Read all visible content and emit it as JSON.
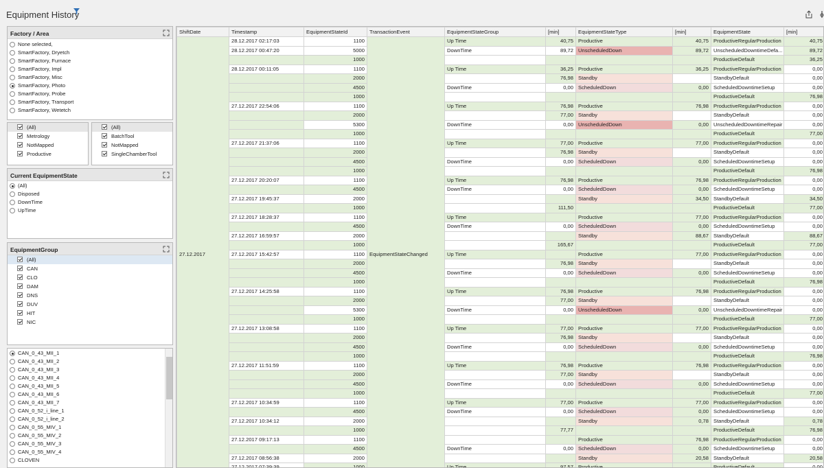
{
  "page": {
    "title": "Equipment History"
  },
  "factory_panel": {
    "title": "Factory / Area",
    "items": [
      "None selected,",
      "SmartFactory, Dryetch",
      "SmartFactory, Furnace",
      "SmartFactory, Impl",
      "SmartFactory, Misc",
      "SmartFactory, Photo",
      "SmartFactory, Probe",
      "SmartFactory, Transport",
      "SmartFactory, Wetetch"
    ],
    "selected": 5
  },
  "filter_left": {
    "items": [
      "(All)",
      "Metrology",
      "NotMapped",
      "Productive"
    ]
  },
  "filter_right": {
    "items": [
      "(All)",
      "BatchTool",
      "NotMapped",
      "SingleChamberTool"
    ]
  },
  "state_panel": {
    "title": "Current EquipmentState",
    "items": [
      "(All)",
      "Disposed",
      "DownTime",
      "UpTime"
    ],
    "selected": 0
  },
  "group_panel": {
    "title": "EquipmentGroup",
    "items": [
      "(All)",
      "CAN",
      "CLO",
      "DAM",
      "DNS",
      "DUV",
      "HIT",
      "NIC"
    ]
  },
  "equipment_list": {
    "items": [
      "CAN_0_43_MII_1",
      "CAN_0_43_MII_2",
      "CAN_0_43_MII_3",
      "CAN_0_43_MII_4",
      "CAN_0_43_MII_5",
      "CAN_0_43_MII_6",
      "CAN_0_43_MII_7",
      "CAN_0_52_i_line_1",
      "CAN_0_52_i_line_2",
      "CAN_0_55_MIV_1",
      "CAN_0_55_MIV_2",
      "CAN_0_55_MIV_3",
      "CAN_0_55_MIV_4",
      "CLOVEN"
    ],
    "selected": 0
  },
  "grid": {
    "columns": [
      "ShiftDate",
      "Timestamp",
      "EquipmentStateId",
      "TransactionEvent",
      "EquipmentStateGroup",
      "[min]",
      "EquipmentStateType",
      "[min]",
      "EquipmentState",
      "[min]"
    ],
    "shift_date": "27.12.2017",
    "transaction_event": "EquipmentStateChanged",
    "rows": [
      [
        "28.12.2017 02:17:03",
        "1100",
        "Up Time",
        "40,75",
        "Productive",
        "40,75",
        "ProductiveRegularProduction",
        "40,75"
      ],
      [
        "28.12.2017 00:47:20",
        "5000",
        "DownTime",
        "89,72",
        "UnscheduledDown",
        "89,72",
        "UnscheduledDowntimeDefa...",
        "89,72"
      ],
      [
        "",
        "1000",
        "",
        "",
        "",
        "",
        "ProductiveDefault",
        "36,25"
      ],
      [
        "28.12.2017 00:11:05",
        "1100",
        "Up Time",
        "36,25",
        "Productive",
        "36,25",
        "ProductiveRegularProduction",
        "0,00"
      ],
      [
        "",
        "2000",
        "",
        "76,98",
        "Standby",
        "",
        "StandbyDefault",
        "0,00"
      ],
      [
        "",
        "4500",
        "DownTime",
        "0,00",
        "ScheduledDown",
        "0,00",
        "ScheduledDowntimeSetup",
        "0,00"
      ],
      [
        "",
        "1000",
        "",
        "",
        "",
        "",
        "ProductiveDefault",
        "76,98"
      ],
      [
        "27.12.2017 22:54:06",
        "1100",
        "Up Time",
        "76,98",
        "Productive",
        "76,98",
        "ProductiveRegularProduction",
        "0,00"
      ],
      [
        "",
        "2000",
        "",
        "77,00",
        "Standby",
        "",
        "StandbyDefault",
        "0,00"
      ],
      [
        "",
        "5300",
        "DownTime",
        "0,00",
        "UnscheduledDown",
        "0,00",
        "UnscheduledDowntimeRepair",
        "0,00"
      ],
      [
        "",
        "1000",
        "",
        "",
        "",
        "",
        "ProductiveDefault",
        "77,00"
      ],
      [
        "27.12.2017 21:37:06",
        "1100",
        "Up Time",
        "77,00",
        "Productive",
        "77,00",
        "ProductiveRegularProduction",
        "0,00"
      ],
      [
        "",
        "2000",
        "",
        "76,98",
        "Standby",
        "",
        "StandbyDefault",
        "0,00"
      ],
      [
        "",
        "4500",
        "DownTime",
        "0,00",
        "ScheduledDown",
        "0,00",
        "ScheduledDowntimeSetup",
        "0,00"
      ],
      [
        "",
        "1000",
        "",
        "",
        "",
        "",
        "ProductiveDefault",
        "76,98"
      ],
      [
        "27.12.2017 20:20:07",
        "1100",
        "Up Time",
        "76,98",
        "Productive",
        "76,98",
        "ProductiveRegularProduction",
        "0,00"
      ],
      [
        "",
        "4500",
        "DownTime",
        "0,00",
        "ScheduledDown",
        "0,00",
        "ScheduledDowntimeSetup",
        "0,00"
      ],
      [
        "27.12.2017 19:45:37",
        "2000",
        "",
        "",
        "Standby",
        "34,50",
        "StandbyDefault",
        "34,50"
      ],
      [
        "",
        "1000",
        "",
        "111,50",
        "",
        "",
        "ProductiveDefault",
        "77,00"
      ],
      [
        "27.12.2017 18:28:37",
        "1100",
        "Up Time",
        "",
        "Productive",
        "77,00",
        "ProductiveRegularProduction",
        "0,00"
      ],
      [
        "",
        "4500",
        "DownTime",
        "0,00",
        "ScheduledDown",
        "0,00",
        "ScheduledDowntimeSetup",
        "0,00"
      ],
      [
        "27.12.2017 16:59:57",
        "2000",
        "",
        "",
        "Standby",
        "88,67",
        "StandbyDefault",
        "88,67"
      ],
      [
        "",
        "1000",
        "",
        "165,67",
        "",
        "",
        "ProductiveDefault",
        "77,00"
      ],
      [
        "27.12.2017 15:42:57",
        "1100",
        "Up Time",
        "",
        "Productive",
        "77,00",
        "ProductiveRegularProduction",
        "0,00"
      ],
      [
        "",
        "2000",
        "",
        "76,98",
        "Standby",
        "",
        "StandbyDefault",
        "0,00"
      ],
      [
        "",
        "4500",
        "DownTime",
        "0,00",
        "ScheduledDown",
        "0,00",
        "ScheduledDowntimeSetup",
        "0,00"
      ],
      [
        "",
        "1000",
        "",
        "",
        "",
        "",
        "ProductiveDefault",
        "76,98"
      ],
      [
        "27.12.2017 14:25:58",
        "1100",
        "Up Time",
        "76,98",
        "Productive",
        "76,98",
        "ProductiveRegularProduction",
        "0,00"
      ],
      [
        "",
        "2000",
        "",
        "77,00",
        "Standby",
        "",
        "StandbyDefault",
        "0,00"
      ],
      [
        "",
        "5300",
        "DownTime",
        "0,00",
        "UnscheduledDown",
        "0,00",
        "UnscheduledDowntimeRepair",
        "0,00"
      ],
      [
        "",
        "1000",
        "",
        "",
        "",
        "",
        "ProductiveDefault",
        "77,00"
      ],
      [
        "27.12.2017 13:08:58",
        "1100",
        "Up Time",
        "77,00",
        "Productive",
        "77,00",
        "ProductiveRegularProduction",
        "0,00"
      ],
      [
        "",
        "2000",
        "",
        "76,98",
        "Standby",
        "",
        "StandbyDefault",
        "0,00"
      ],
      [
        "",
        "4500",
        "DownTime",
        "0,00",
        "ScheduledDown",
        "0,00",
        "ScheduledDowntimeSetup",
        "0,00"
      ],
      [
        "",
        "1000",
        "",
        "",
        "",
        "",
        "ProductiveDefault",
        "76,98"
      ],
      [
        "27.12.2017 11:51:59",
        "1100",
        "Up Time",
        "76,98",
        "Productive",
        "76,98",
        "ProductiveRegularProduction",
        "0,00"
      ],
      [
        "",
        "2000",
        "",
        "77,00",
        "Standby",
        "",
        "StandbyDefault",
        "0,00"
      ],
      [
        "",
        "4500",
        "DownTime",
        "0,00",
        "ScheduledDown",
        "0,00",
        "ScheduledDowntimeSetup",
        "0,00"
      ],
      [
        "",
        "1000",
        "",
        "",
        "",
        "",
        "ProductiveDefault",
        "77,00"
      ],
      [
        "27.12.2017 10:34:59",
        "1100",
        "Up Time",
        "77,00",
        "Productive",
        "77,00",
        "ProductiveRegularProduction",
        "0,00"
      ],
      [
        "",
        "4500",
        "DownTime",
        "0,00",
        "ScheduledDown",
        "0,00",
        "ScheduledDowntimeSetup",
        "0,00"
      ],
      [
        "27.12.2017 10:34:12",
        "2000",
        "",
        "",
        "Standby",
        "0,78",
        "StandbyDefault",
        "0,78"
      ],
      [
        "",
        "1000",
        "",
        "77,77",
        "",
        "",
        "ProductiveDefault",
        "76,98"
      ],
      [
        "27.12.2017 09:17:13",
        "1100",
        "",
        "",
        "Productive",
        "76,98",
        "ProductiveRegularProduction",
        "0,00"
      ],
      [
        "",
        "4500",
        "DownTime",
        "0,00",
        "ScheduledDown",
        "0,00",
        "ScheduledDowntimeSetup",
        "0,00"
      ],
      [
        "27.12.2017 08:56:38",
        "2000",
        "",
        "",
        "Standby",
        "20,58",
        "StandbyDefault",
        "20,58"
      ],
      [
        "27.12.2017 07:39:39",
        "1000",
        "Up Time",
        "97,57",
        "Productive",
        "",
        "ProductiveDefault",
        "0,00"
      ]
    ]
  }
}
